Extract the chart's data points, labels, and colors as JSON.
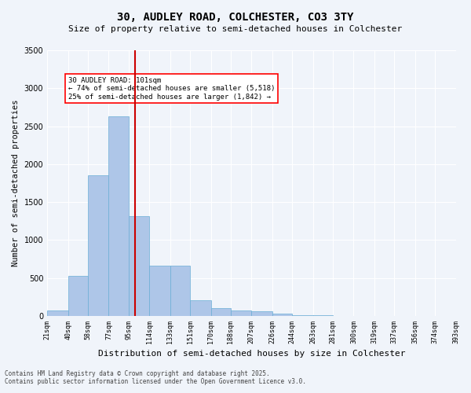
{
  "title_line1": "30, AUDLEY ROAD, COLCHESTER, CO3 3TY",
  "title_line2": "Size of property relative to semi-detached houses in Colchester",
  "xlabel": "Distribution of semi-detached houses by size in Colchester",
  "ylabel": "Number of semi-detached properties",
  "property_size": 101,
  "property_label": "30 AUDLEY ROAD: 101sqm",
  "smaller_pct": "74%",
  "smaller_count": "5,518",
  "larger_pct": "25%",
  "larger_count": "1,842",
  "annotation_line1": "30 AUDLEY ROAD: 101sqm",
  "annotation_line2": "← 74% of semi-detached houses are smaller (5,518)",
  "annotation_line3": "25% of semi-detached houses are larger (1,842) →",
  "bin_edges": [
    21,
    40,
    58,
    77,
    95,
    114,
    133,
    151,
    170,
    188,
    207,
    226,
    244,
    263,
    281,
    300,
    319,
    337,
    356,
    374,
    393
  ],
  "bar_heights": [
    75,
    530,
    1850,
    2630,
    1310,
    660,
    660,
    210,
    105,
    75,
    60,
    30,
    10,
    5,
    2,
    1,
    0,
    0,
    0,
    0
  ],
  "bar_color": "#aec6e8",
  "bar_edge_color": "#6aaed6",
  "vline_color": "#cc0000",
  "vline_x": 101,
  "ylim": [
    0,
    3500
  ],
  "yticks": [
    0,
    500,
    1000,
    1500,
    2000,
    2500,
    3000,
    3500
  ],
  "background_color": "#f0f4fa",
  "grid_color": "#ffffff",
  "footer_line1": "Contains HM Land Registry data © Crown copyright and database right 2025.",
  "footer_line2": "Contains public sector information licensed under the Open Government Licence v3.0."
}
